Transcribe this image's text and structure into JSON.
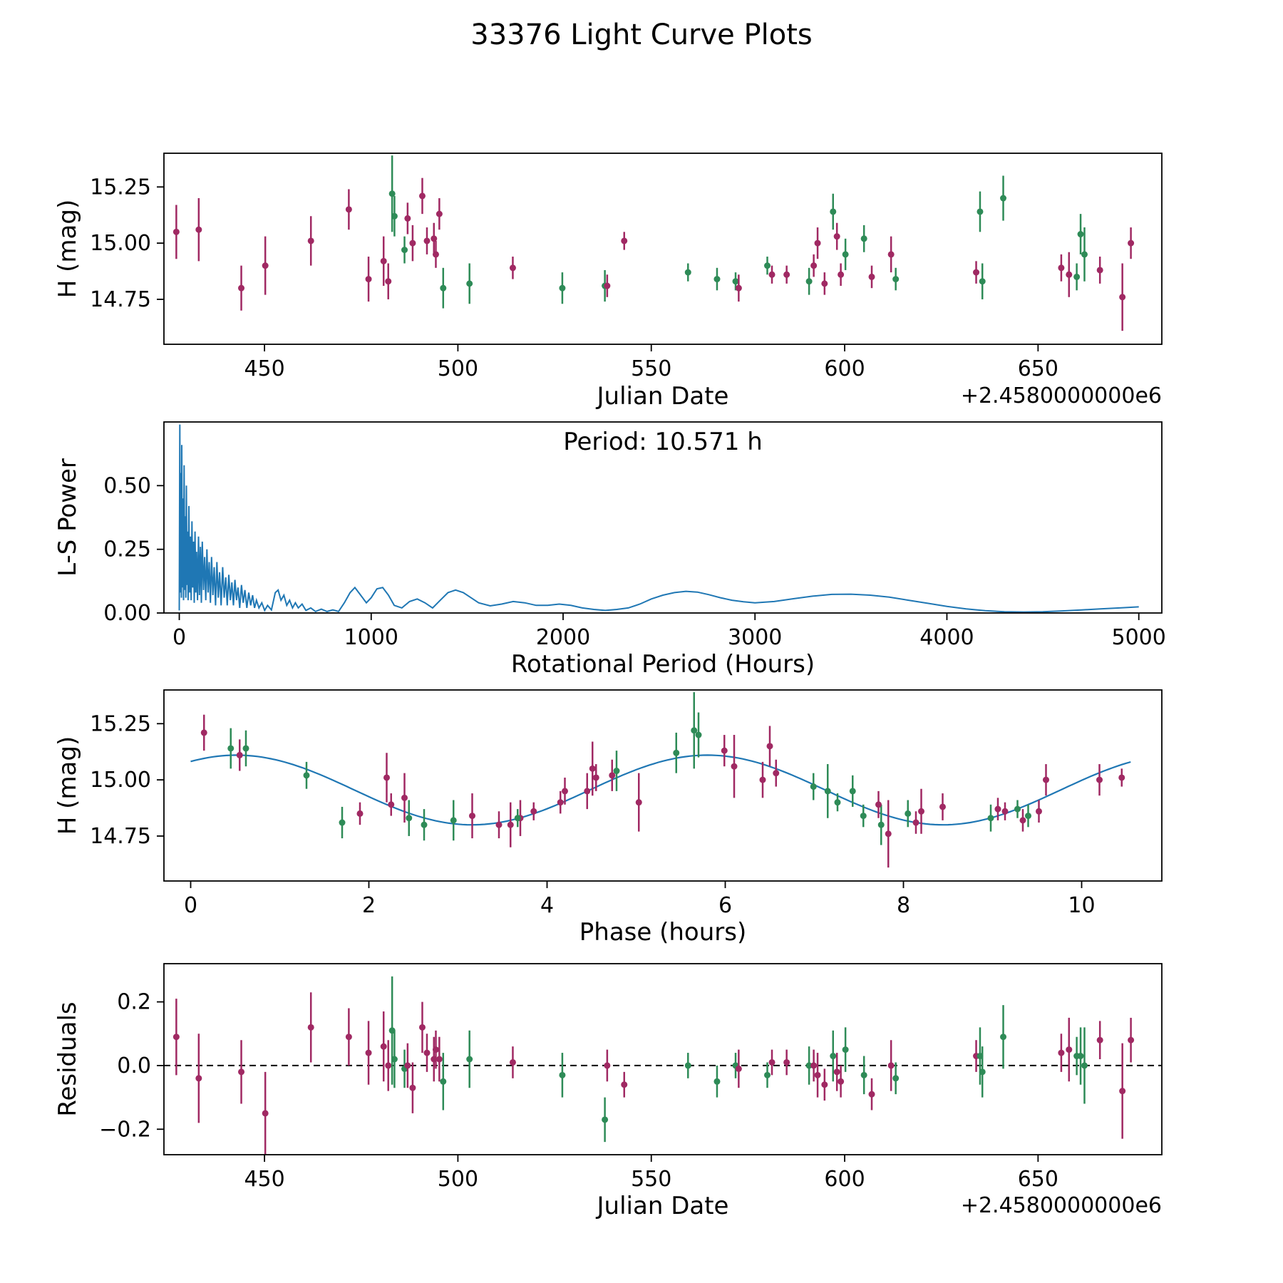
{
  "title": "33376 Light Curve Plots",
  "colors": {
    "scatter_magenta": "#a02963",
    "scatter_green": "#2e8b57",
    "line_blue": "#1f77b4",
    "axis_black": "#000000"
  },
  "chart_data": [
    {
      "type": "scatter",
      "name": "light-curve",
      "xlabel": "Julian Date",
      "x_offset_label": "+2.4580000000e6",
      "ylabel": "H (mag)",
      "xlim": [
        424,
        682
      ],
      "ylim": [
        14.55,
        15.4
      ],
      "xticks": [
        450,
        500,
        550,
        600,
        650
      ],
      "xtick_labels": [
        "450",
        "500",
        "550",
        "600",
        "650"
      ],
      "yticks": [
        14.75,
        15.0,
        15.25
      ],
      "ytick_labels": [
        "14.75",
        "15.00",
        "15.25"
      ],
      "x_field": "jd",
      "y_field": "mag",
      "error_bars": true
    },
    {
      "type": "line",
      "name": "periodogram",
      "xlabel": "Rotational Period (Hours)",
      "ylabel": "L-S Power",
      "annotation": "Period: 10.571 h",
      "best_period_hours": 10.571,
      "xlim": [
        -80,
        5120
      ],
      "ylim": [
        0,
        0.75
      ],
      "xticks": [
        0,
        1000,
        2000,
        3000,
        4000,
        5000
      ],
      "xtick_labels": [
        "0",
        "1000",
        "2000",
        "3000",
        "4000",
        "5000"
      ],
      "yticks": [
        0.0,
        0.25,
        0.5
      ],
      "ytick_labels": [
        "0.00",
        "0.25",
        "0.50"
      ],
      "points": [
        [
          0,
          0.01
        ],
        [
          3,
          0.74
        ],
        [
          5,
          0.08
        ],
        [
          8,
          0.55
        ],
        [
          11,
          0.06
        ],
        [
          13,
          0.66
        ],
        [
          16,
          0.1
        ],
        [
          19,
          0.45
        ],
        [
          22,
          0.05
        ],
        [
          25,
          0.58
        ],
        [
          28,
          0.09
        ],
        [
          31,
          0.38
        ],
        [
          34,
          0.06
        ],
        [
          37,
          0.5
        ],
        [
          40,
          0.11
        ],
        [
          43,
          0.32
        ],
        [
          46,
          0.05
        ],
        [
          50,
          0.42
        ],
        [
          54,
          0.08
        ],
        [
          58,
          0.3
        ],
        [
          62,
          0.05
        ],
        [
          66,
          0.36
        ],
        [
          70,
          0.1
        ],
        [
          74,
          0.28
        ],
        [
          78,
          0.04
        ],
        [
          82,
          0.32
        ],
        [
          86,
          0.08
        ],
        [
          90,
          0.24
        ],
        [
          95,
          0.05
        ],
        [
          100,
          0.3
        ],
        [
          105,
          0.07
        ],
        [
          110,
          0.26
        ],
        [
          115,
          0.04
        ],
        [
          120,
          0.28
        ],
        [
          126,
          0.09
        ],
        [
          132,
          0.22
        ],
        [
          138,
          0.05
        ],
        [
          144,
          0.25
        ],
        [
          150,
          0.08
        ],
        [
          156,
          0.2
        ],
        [
          162,
          0.04
        ],
        [
          168,
          0.22
        ],
        [
          175,
          0.07
        ],
        [
          182,
          0.18
        ],
        [
          189,
          0.03
        ],
        [
          196,
          0.2
        ],
        [
          203,
          0.06
        ],
        [
          210,
          0.16
        ],
        [
          218,
          0.03
        ],
        [
          226,
          0.18
        ],
        [
          234,
          0.06
        ],
        [
          242,
          0.14
        ],
        [
          250,
          0.03
        ],
        [
          258,
          0.15
        ],
        [
          266,
          0.05
        ],
        [
          274,
          0.12
        ],
        [
          282,
          0.03
        ],
        [
          290,
          0.13
        ],
        [
          298,
          0.05
        ],
        [
          306,
          0.1
        ],
        [
          315,
          0.02
        ],
        [
          324,
          0.11
        ],
        [
          333,
          0.04
        ],
        [
          342,
          0.09
        ],
        [
          352,
          0.02
        ],
        [
          362,
          0.08
        ],
        [
          372,
          0.03
        ],
        [
          382,
          0.07
        ],
        [
          392,
          0.02
        ],
        [
          402,
          0.05
        ],
        [
          415,
          0.02
        ],
        [
          430,
          0.04
        ],
        [
          445,
          0.01
        ],
        [
          460,
          0.03
        ],
        [
          480,
          0.012
        ],
        [
          500,
          0.08
        ],
        [
          515,
          0.09
        ],
        [
          530,
          0.05
        ],
        [
          545,
          0.07
        ],
        [
          560,
          0.03
        ],
        [
          575,
          0.05
        ],
        [
          590,
          0.02
        ],
        [
          605,
          0.04
        ],
        [
          620,
          0.02
        ],
        [
          640,
          0.035
        ],
        [
          660,
          0.01
        ],
        [
          685,
          0.02
        ],
        [
          710,
          0.006
        ],
        [
          740,
          0.015
        ],
        [
          770,
          0.006
        ],
        [
          800,
          0.012
        ],
        [
          830,
          0.006
        ],
        [
          860,
          0.04
        ],
        [
          890,
          0.08
        ],
        [
          915,
          0.1
        ],
        [
          945,
          0.07
        ],
        [
          975,
          0.04
        ],
        [
          1000,
          0.06
        ],
        [
          1030,
          0.095
        ],
        [
          1060,
          0.1
        ],
        [
          1090,
          0.07
        ],
        [
          1120,
          0.03
        ],
        [
          1160,
          0.02
        ],
        [
          1200,
          0.045
        ],
        [
          1240,
          0.055
        ],
        [
          1280,
          0.04
        ],
        [
          1320,
          0.02
        ],
        [
          1360,
          0.05
        ],
        [
          1400,
          0.08
        ],
        [
          1440,
          0.09
        ],
        [
          1480,
          0.08
        ],
        [
          1520,
          0.06
        ],
        [
          1560,
          0.04
        ],
        [
          1620,
          0.028
        ],
        [
          1680,
          0.035
        ],
        [
          1740,
          0.045
        ],
        [
          1800,
          0.04
        ],
        [
          1860,
          0.03
        ],
        [
          1920,
          0.03
        ],
        [
          1980,
          0.035
        ],
        [
          2040,
          0.03
        ],
        [
          2100,
          0.02
        ],
        [
          2160,
          0.014
        ],
        [
          2220,
          0.01
        ],
        [
          2280,
          0.014
        ],
        [
          2340,
          0.02
        ],
        [
          2400,
          0.035
        ],
        [
          2460,
          0.055
        ],
        [
          2520,
          0.07
        ],
        [
          2580,
          0.08
        ],
        [
          2640,
          0.085
        ],
        [
          2700,
          0.082
        ],
        [
          2760,
          0.072
        ],
        [
          2820,
          0.06
        ],
        [
          2880,
          0.05
        ],
        [
          2940,
          0.044
        ],
        [
          3000,
          0.04
        ],
        [
          3100,
          0.045
        ],
        [
          3200,
          0.056
        ],
        [
          3300,
          0.066
        ],
        [
          3400,
          0.073
        ],
        [
          3500,
          0.074
        ],
        [
          3600,
          0.07
        ],
        [
          3700,
          0.062
        ],
        [
          3800,
          0.05
        ],
        [
          3900,
          0.038
        ],
        [
          4000,
          0.026
        ],
        [
          4100,
          0.016
        ],
        [
          4200,
          0.009
        ],
        [
          4300,
          0.005
        ],
        [
          4400,
          0.004
        ],
        [
          4500,
          0.005
        ],
        [
          4600,
          0.008
        ],
        [
          4700,
          0.012
        ],
        [
          4800,
          0.016
        ],
        [
          4900,
          0.02
        ],
        [
          5000,
          0.024
        ]
      ]
    },
    {
      "type": "scatter",
      "name": "phased-light-curve",
      "xlabel": "Phase (hours)",
      "ylabel": "H (mag)",
      "xlim": [
        -0.3,
        10.9
      ],
      "ylim": [
        14.55,
        15.4
      ],
      "xticks": [
        0,
        2,
        4,
        6,
        8,
        10
      ],
      "xtick_labels": [
        "0",
        "2",
        "4",
        "6",
        "8",
        "10"
      ],
      "yticks": [
        14.75,
        15.0,
        15.25
      ],
      "ytick_labels": [
        "14.75",
        "15.00",
        "15.25"
      ],
      "x_field": "phase",
      "y_field": "mag",
      "error_bars": true,
      "fit": {
        "mean": 14.955,
        "amplitude": 0.155,
        "sine_period_hours": 5.2855,
        "sine_zero_phase": 4.479,
        "x_min": 0,
        "x_max": 10.571
      }
    },
    {
      "type": "scatter",
      "name": "residuals",
      "xlabel": "Julian Date",
      "x_offset_label": "+2.4580000000e6",
      "ylabel": "Residuals",
      "xlim": [
        424,
        682
      ],
      "ylim": [
        -0.28,
        0.32
      ],
      "xticks": [
        450,
        500,
        550,
        600,
        650
      ],
      "xtick_labels": [
        "450",
        "500",
        "550",
        "600",
        "650"
      ],
      "yticks": [
        -0.2,
        0.0,
        0.2
      ],
      "ytick_labels": [
        "−0.2",
        "0.0",
        "0.2"
      ],
      "x_field": "jd",
      "y_field": "residual",
      "error_bars": true,
      "zero_line": true
    }
  ],
  "observations": {
    "columns": [
      "jd_minus_2458000",
      "phase_hours",
      "h_mag",
      "h_mag_err",
      "group",
      "residual"
    ],
    "rows": [
      [
        427.2,
        4.51,
        15.05,
        0.12,
        "m",
        0.09
      ],
      [
        433.0,
        6.1,
        15.06,
        0.14,
        "m",
        -0.04
      ],
      [
        444.0,
        3.59,
        14.8,
        0.1,
        "m",
        -0.02
      ],
      [
        450.2,
        5.03,
        14.9,
        0.13,
        "m",
        -0.15
      ],
      [
        462.0,
        2.2,
        15.01,
        0.11,
        "m",
        0.12
      ],
      [
        471.8,
        6.5,
        15.15,
        0.09,
        "m",
        0.09
      ],
      [
        476.9,
        3.16,
        14.84,
        0.1,
        "m",
        0.04
      ],
      [
        480.8,
        2.4,
        14.92,
        0.11,
        "m",
        0.06
      ],
      [
        482.0,
        3.7,
        14.83,
        0.08,
        "m",
        0.0
      ],
      [
        483.0,
        5.65,
        15.22,
        0.17,
        "g",
        0.11
      ],
      [
        483.6,
        5.45,
        15.12,
        0.09,
        "g",
        0.02
      ],
      [
        486.2,
        6.99,
        14.97,
        0.06,
        "g",
        -0.01
      ],
      [
        487.0,
        0.55,
        15.11,
        0.07,
        "m",
        0.0
      ],
      [
        488.3,
        6.42,
        15.0,
        0.08,
        "m",
        -0.07
      ],
      [
        490.8,
        0.15,
        15.21,
        0.08,
        "m",
        0.12
      ],
      [
        492.0,
        4.55,
        15.01,
        0.06,
        "m",
        0.04
      ],
      [
        493.8,
        4.73,
        15.02,
        0.07,
        "m",
        0.02
      ],
      [
        494.3,
        4.2,
        14.95,
        0.06,
        "m",
        0.05
      ],
      [
        495.2,
        5.99,
        15.13,
        0.07,
        "m",
        0.02
      ],
      [
        496.2,
        7.75,
        14.8,
        0.09,
        "g",
        -0.05
      ],
      [
        503.0,
        2.95,
        14.82,
        0.09,
        "g",
        0.02
      ],
      [
        514.2,
        2.25,
        14.89,
        0.05,
        "m",
        0.01
      ],
      [
        527.0,
        2.62,
        14.8,
        0.07,
        "g",
        -0.03
      ],
      [
        538.0,
        1.7,
        14.81,
        0.07,
        "g",
        -0.17
      ],
      [
        538.6,
        8.14,
        14.81,
        0.05,
        "m",
        0.0
      ],
      [
        543.0,
        10.45,
        15.01,
        0.04,
        "m",
        -0.06
      ],
      [
        559.5,
        9.28,
        14.87,
        0.04,
        "g",
        0.0
      ],
      [
        567.0,
        9.4,
        14.84,
        0.05,
        "g",
        -0.05
      ],
      [
        571.8,
        3.67,
        14.83,
        0.04,
        "g",
        0.0
      ],
      [
        572.6,
        3.46,
        14.8,
        0.06,
        "m",
        -0.01
      ],
      [
        580.0,
        7.26,
        14.9,
        0.04,
        "g",
        -0.03
      ],
      [
        581.2,
        9.14,
        14.86,
        0.04,
        "m",
        0.01
      ],
      [
        585.0,
        3.85,
        14.86,
        0.04,
        "m",
        0.01
      ],
      [
        590.8,
        8.98,
        14.83,
        0.06,
        "g",
        0.0
      ],
      [
        592.0,
        4.15,
        14.9,
        0.05,
        "m",
        0.0
      ],
      [
        593.0,
        10.2,
        15.0,
        0.07,
        "m",
        -0.03
      ],
      [
        594.8,
        9.34,
        14.82,
        0.05,
        "m",
        -0.06
      ],
      [
        597.0,
        0.62,
        15.14,
        0.08,
        "g",
        0.03
      ],
      [
        598.0,
        6.57,
        15.03,
        0.06,
        "m",
        -0.02
      ],
      [
        599.0,
        9.52,
        14.86,
        0.05,
        "m",
        -0.05
      ],
      [
        600.2,
        7.43,
        14.95,
        0.07,
        "g",
        0.05
      ],
      [
        605.0,
        1.3,
        15.02,
        0.06,
        "g",
        -0.03
      ],
      [
        607.0,
        1.9,
        14.85,
        0.05,
        "m",
        -0.09
      ],
      [
        612.0,
        4.45,
        14.95,
        0.08,
        "m",
        0.0
      ],
      [
        613.2,
        7.55,
        14.84,
        0.05,
        "g",
        -0.04
      ],
      [
        634.0,
        9.06,
        14.87,
        0.05,
        "m",
        0.03
      ],
      [
        635.0,
        0.45,
        15.14,
        0.09,
        "g",
        0.03
      ],
      [
        635.6,
        2.45,
        14.83,
        0.08,
        "g",
        -0.02
      ],
      [
        641.0,
        5.7,
        15.2,
        0.1,
        "g",
        0.09
      ],
      [
        656.0,
        7.72,
        14.89,
        0.06,
        "m",
        0.04
      ],
      [
        658.0,
        8.2,
        14.86,
        0.1,
        "m",
        0.05
      ],
      [
        660.0,
        8.05,
        14.85,
        0.06,
        "g",
        0.03
      ],
      [
        661.0,
        4.78,
        15.04,
        0.09,
        "g",
        0.03
      ],
      [
        662.0,
        7.15,
        14.95,
        0.12,
        "g",
        0.0
      ],
      [
        666.0,
        8.44,
        14.88,
        0.06,
        "m",
        0.08
      ],
      [
        671.8,
        7.83,
        14.76,
        0.15,
        "m",
        -0.08
      ],
      [
        674.0,
        9.6,
        15.0,
        0.07,
        "m",
        0.08
      ]
    ]
  }
}
